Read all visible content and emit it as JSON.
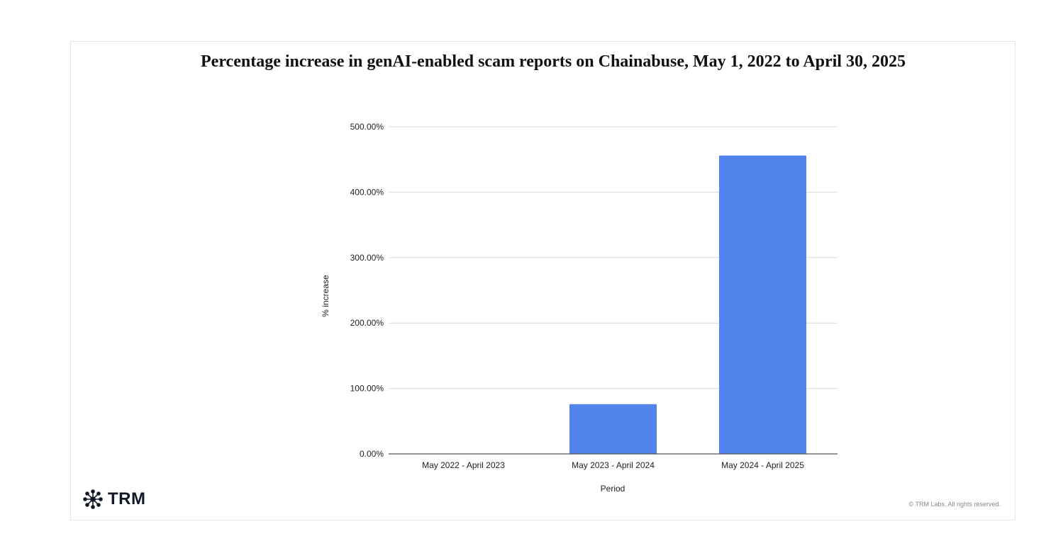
{
  "chart_data": {
    "type": "bar",
    "title": "Percentage increase in genAI-enabled scam reports on Chainabuse, May 1, 2022 to April 30, 2025",
    "xlabel": "Period",
    "ylabel": "% increase",
    "categories": [
      "May 2022 - April 2023",
      "May 2023 - April 2024",
      "May 2024 - April 2025"
    ],
    "values": [
      0,
      76,
      456
    ],
    "ylim": [
      0,
      500
    ],
    "yticks": [
      "0.00%",
      "100.00%",
      "200.00%",
      "300.00%",
      "400.00%",
      "500.00%"
    ],
    "grid": true,
    "bar_color": "#5383ec"
  },
  "logo": {
    "text": "TRM"
  },
  "footer": {
    "copyright": "© TRM Labs. All rights reserved."
  }
}
